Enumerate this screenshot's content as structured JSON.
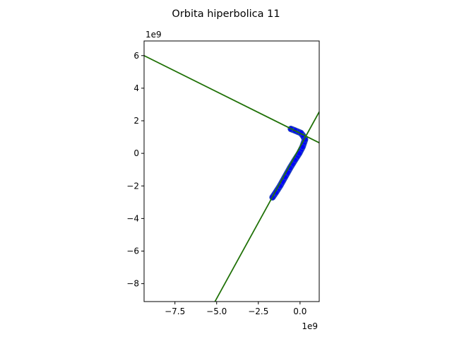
{
  "chart_data": {
    "type": "line",
    "title": "Orbita hiperbolica 11",
    "xlabel": "",
    "ylabel": "",
    "x_offset_label": "1e9",
    "y_offset_label": "1e9",
    "xlim": [
      -9.35,
      1.15
    ],
    "ylim": [
      -9.1,
      6.9
    ],
    "x_ticks": [
      -7.5,
      -5.0,
      -2.5,
      0.0
    ],
    "x_tick_labels": [
      "−7.5",
      "−5.0",
      "−2.5",
      "0.0"
    ],
    "y_ticks": [
      -8,
      -6,
      -4,
      -2,
      0,
      2,
      4,
      6
    ],
    "y_tick_labels": [
      "−8",
      "−6",
      "−4",
      "−2",
      "0",
      "2",
      "4",
      "6"
    ],
    "grid": false,
    "colors": {
      "orbit": "#0000ff",
      "orbit_edge": "#1f3fbf",
      "asymptote_a": "#2a7a1a",
      "asymptote_b": "#1f6f00"
    },
    "series": [
      {
        "style": "thick-blue-orbit",
        "x": [
          -0.55,
          -0.3,
          0.05,
          0.2,
          0.3,
          0.15,
          -0.05,
          -0.3,
          -0.6,
          -0.9,
          -1.2,
          -1.45,
          -1.65
        ],
        "y": [
          1.5,
          1.4,
          1.25,
          1.05,
          0.85,
          0.4,
          0.0,
          -0.4,
          -0.9,
          -1.45,
          -2.0,
          -2.4,
          -2.7
        ]
      },
      {
        "style": "green-asymptote",
        "x": [
          -9.35,
          1.15
        ],
        "y": [
          6.0,
          0.65
        ]
      },
      {
        "style": "green-asymptote",
        "x": [
          -5.1,
          1.15
        ],
        "y": [
          -9.1,
          2.55
        ]
      }
    ]
  }
}
